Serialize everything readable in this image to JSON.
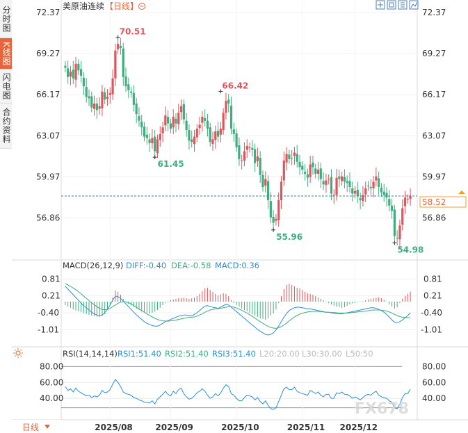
{
  "sidebar": {
    "tabs": [
      {
        "label": "分时图",
        "active": false
      },
      {
        "label": "K线图",
        "active": true
      },
      {
        "label": "闪电图",
        "active": false
      },
      {
        "label": "合约资料",
        "active": false
      }
    ]
  },
  "header": {
    "symbol": "美原油连续",
    "period_tag": "【日线】",
    "toolbar_icons": [
      "crosshair-icon",
      "fullscreen-icon",
      "settings-icon",
      "indicator-icon"
    ]
  },
  "price_panel": {
    "current_price": "58.52",
    "annotations": [
      {
        "label": "70.51",
        "value": 70.51,
        "kind": "high"
      },
      {
        "label": "66.42",
        "value": 66.42,
        "kind": "high"
      },
      {
        "label": "61.45",
        "value": 61.45,
        "kind": "low"
      },
      {
        "label": "55.96",
        "value": 55.96,
        "kind": "low"
      },
      {
        "label": "54.98",
        "value": 54.98,
        "kind": "low"
      }
    ]
  },
  "macd_panel": {
    "title": "MACD(26,12,9)",
    "dif": "DIFF:-0.40",
    "dea": "DEA:-0.58",
    "macd": "MACD:0.36"
  },
  "rsi_panel": {
    "title": "RSI(14,14,14)",
    "rsi1": "RSI1:51.40",
    "rsi2": "RSI2:51.40",
    "rsi3": "RSI3:51.40",
    "l20": "L20:20.00",
    "l30": "L30:30.00",
    "l50": "L50:50"
  },
  "footer": {
    "period_label": "日线",
    "months": [
      "2025/08",
      "2025/09",
      "2025/10",
      "2025/11",
      "2025/12"
    ]
  },
  "watermark": "FX678",
  "colors": {
    "up": "#e0555b",
    "down": "#3dae7d",
    "current_price_line": "#2f7fb8",
    "current_price_label_bg": "#f59c2a",
    "dif_line": "#2a8fd8",
    "dea_line": "#3dae7d",
    "rsi_line": "#2a8fd8",
    "accent": "#e8653b"
  },
  "chart_data": [
    {
      "type": "candlestick",
      "title": "美原油连续",
      "y_ticks": [
        72.37,
        69.27,
        66.17,
        63.07,
        59.97,
        56.86
      ],
      "ylim": [
        53.8,
        72.37
      ],
      "x_ticks": [
        "2025/08",
        "2025/09",
        "2025/10",
        "2025/11",
        "2025/12"
      ],
      "current_price": 58.52,
      "high_labels": [
        70.51,
        66.42
      ],
      "low_labels": [
        61.45,
        55.96,
        54.98
      ],
      "closes": [
        68.2,
        67.5,
        67.9,
        67.4,
        68.5,
        68.0,
        67.6,
        66.8,
        66.0,
        65.9,
        65.2,
        65.5,
        65.0,
        65.3,
        66.4,
        65.8,
        66.0,
        66.3,
        67.4,
        69.5,
        70.0,
        69.7,
        67.5,
        66.8,
        66.5,
        66.3,
        65.4,
        64.7,
        64.2,
        63.7,
        63.0,
        62.9,
        62.5,
        62.9,
        61.9,
        62.8,
        63.2,
        63.7,
        64.6,
        64.0,
        63.6,
        64.5,
        64.0,
        64.8,
        65.3,
        64.3,
        63.5,
        62.7,
        62.6,
        63.0,
        63.6,
        63.9,
        64.5,
        64.2,
        63.6,
        62.6,
        62.8,
        63.4,
        63.0,
        63.6,
        64.8,
        65.7,
        65.5,
        63.6,
        63.2,
        62.2,
        61.3,
        61.2,
        61.9,
        62.3,
        62.2,
        62.0,
        61.0,
        61.5,
        60.1,
        59.2,
        59.8,
        58.2,
        56.9,
        56.5,
        56.8,
        58.2,
        59.6,
        61.2,
        61.7,
        61.3,
        61.4,
        61.8,
        61.1,
        60.7,
        60.5,
        60.2,
        59.9,
        60.9,
        60.7,
        60.2,
        60.5,
        59.8,
        59.4,
        59.7,
        59.8,
        58.7,
        58.6,
        59.9,
        59.8,
        60.0,
        59.6,
        59.5,
        59.2,
        58.7,
        58.9,
        58.5,
        58.2,
        58.6,
        59.1,
        59.3,
        59.1,
        59.6,
        60.0,
        59.2,
        58.8,
        58.6,
        58.4,
        57.8,
        57.4,
        55.5,
        55.3,
        56.3,
        57.6,
        58.4,
        58.3,
        58.52
      ],
      "series": [
        {
          "name": "MACD",
          "ylim": [
            -1.4,
            1.0
          ],
          "y_ticks": [
            0.81,
            0.21,
            -0.4,
            -1.01
          ],
          "values": [
            -0.12,
            -0.18,
            -0.22,
            -0.28,
            -0.32,
            -0.35,
            -0.38,
            -0.41,
            -0.45,
            -0.48,
            -0.5,
            -0.52,
            -0.54,
            -0.55,
            -0.52,
            -0.45,
            -0.3,
            -0.1,
            0.15,
            0.4,
            0.35,
            0.25,
            0.1,
            0.0,
            -0.08,
            -0.14,
            -0.2,
            -0.26,
            -0.3,
            -0.35,
            -0.38,
            -0.4,
            -0.42,
            -0.4,
            -0.36,
            -0.3,
            -0.22,
            -0.12,
            -0.05,
            0.02,
            0.06,
            0.08,
            0.1,
            0.12,
            0.13,
            0.14,
            0.12,
            0.1,
            0.12,
            0.14,
            0.2,
            0.28,
            0.38,
            0.48,
            0.5,
            0.42,
            0.35,
            0.28,
            0.22,
            0.26,
            0.3,
            0.28,
            0.2,
            0.05,
            -0.05,
            -0.12,
            -0.18,
            -0.25,
            -0.3,
            -0.35,
            -0.4,
            -0.45,
            -0.5,
            -0.55,
            -0.6,
            -0.62,
            -0.65,
            -0.6,
            -0.5,
            -0.42,
            -0.28,
            -0.05,
            0.2,
            0.45,
            0.6,
            0.65,
            0.6,
            0.55,
            0.5,
            0.48,
            0.42,
            0.35,
            0.3,
            0.28,
            0.25,
            0.2,
            0.15,
            0.1,
            0.05,
            -0.02,
            -0.06,
            -0.1,
            -0.14,
            -0.18,
            -0.2,
            -0.22,
            -0.2,
            -0.15,
            -0.1,
            -0.06,
            -0.04,
            -0.02,
            -0.01,
            0.02,
            0.05,
            0.08,
            0.1,
            0.12,
            0.14,
            0.15,
            0.12,
            0.06,
            -0.02,
            -0.1,
            -0.18,
            -0.25,
            -0.2,
            -0.05,
            0.1,
            0.2,
            0.28,
            0.36
          ]
        },
        {
          "name": "DIFF",
          "values": [
            0.55,
            0.45,
            0.35,
            0.25,
            0.15,
            0.05,
            -0.05,
            -0.15,
            -0.22,
            -0.3,
            -0.38,
            -0.44,
            -0.48,
            -0.5,
            -0.48,
            -0.4,
            -0.28,
            -0.12,
            0.05,
            0.2,
            0.18,
            0.12,
            0.02,
            -0.08,
            -0.18,
            -0.28,
            -0.38,
            -0.48,
            -0.56,
            -0.64,
            -0.72,
            -0.78,
            -0.82,
            -0.86,
            -0.88,
            -0.88,
            -0.84,
            -0.78,
            -0.72,
            -0.68,
            -0.64,
            -0.6,
            -0.56,
            -0.52,
            -0.5,
            -0.48,
            -0.48,
            -0.5,
            -0.5,
            -0.46,
            -0.4,
            -0.32,
            -0.24,
            -0.16,
            -0.14,
            -0.18,
            -0.2,
            -0.22,
            -0.24,
            -0.2,
            -0.14,
            -0.1,
            -0.12,
            -0.2,
            -0.28,
            -0.36,
            -0.44,
            -0.52,
            -0.6,
            -0.68,
            -0.76,
            -0.84,
            -0.92,
            -1.0,
            -1.06,
            -1.12,
            -1.18,
            -1.2,
            -1.18,
            -1.12,
            -1.02,
            -0.88,
            -0.72,
            -0.56,
            -0.42,
            -0.32,
            -0.26,
            -0.22,
            -0.2,
            -0.2,
            -0.22,
            -0.24,
            -0.26,
            -0.26,
            -0.28,
            -0.3,
            -0.32,
            -0.34,
            -0.36,
            -0.38,
            -0.38,
            -0.4,
            -0.42,
            -0.44,
            -0.44,
            -0.44,
            -0.42,
            -0.4,
            -0.38,
            -0.36,
            -0.34,
            -0.32,
            -0.3,
            -0.28,
            -0.26,
            -0.24,
            -0.22,
            -0.22,
            -0.24,
            -0.28,
            -0.32,
            -0.38,
            -0.46,
            -0.56,
            -0.66,
            -0.74,
            -0.76,
            -0.72,
            -0.66,
            -0.58,
            -0.5,
            -0.4
          ]
        },
        {
          "name": "DEA",
          "values": [
            0.65,
            0.6,
            0.55,
            0.49,
            0.43,
            0.36,
            0.28,
            0.2,
            0.12,
            0.04,
            -0.04,
            -0.11,
            -0.18,
            -0.24,
            -0.28,
            -0.29,
            -0.28,
            -0.24,
            -0.18,
            -0.12,
            -0.06,
            -0.02,
            0.0,
            -0.01,
            -0.04,
            -0.08,
            -0.14,
            -0.2,
            -0.26,
            -0.32,
            -0.38,
            -0.44,
            -0.5,
            -0.55,
            -0.6,
            -0.64,
            -0.67,
            -0.69,
            -0.7,
            -0.7,
            -0.69,
            -0.68,
            -0.66,
            -0.64,
            -0.62,
            -0.6,
            -0.58,
            -0.57,
            -0.56,
            -0.55,
            -0.52,
            -0.48,
            -0.44,
            -0.38,
            -0.34,
            -0.3,
            -0.28,
            -0.26,
            -0.25,
            -0.24,
            -0.22,
            -0.2,
            -0.18,
            -0.18,
            -0.2,
            -0.23,
            -0.27,
            -0.31,
            -0.36,
            -0.41,
            -0.47,
            -0.53,
            -0.59,
            -0.66,
            -0.72,
            -0.78,
            -0.84,
            -0.89,
            -0.93,
            -0.95,
            -0.96,
            -0.94,
            -0.9,
            -0.84,
            -0.77,
            -0.69,
            -0.62,
            -0.55,
            -0.5,
            -0.45,
            -0.42,
            -0.39,
            -0.37,
            -0.36,
            -0.35,
            -0.35,
            -0.35,
            -0.36,
            -0.37,
            -0.38,
            -0.38,
            -0.39,
            -0.39,
            -0.4,
            -0.41,
            -0.41,
            -0.41,
            -0.41,
            -0.4,
            -0.39,
            -0.38,
            -0.37,
            -0.36,
            -0.35,
            -0.34,
            -0.33,
            -0.31,
            -0.3,
            -0.3,
            -0.3,
            -0.31,
            -0.32,
            -0.34,
            -0.37,
            -0.41,
            -0.46,
            -0.5,
            -0.54,
            -0.56,
            -0.57,
            -0.58,
            -0.58
          ]
        },
        {
          "name": "RSI",
          "ylim": [
            20,
            90
          ],
          "y_ticks": [
            80.0,
            60.0,
            40.0
          ],
          "values": [
            55,
            50,
            52,
            48,
            53,
            49,
            47,
            45,
            43,
            44,
            41,
            43,
            42,
            44,
            50,
            47,
            48,
            51,
            58,
            64,
            60,
            55,
            48,
            46,
            45,
            44,
            41,
            40,
            38,
            37,
            35,
            35,
            34,
            37,
            33,
            39,
            42,
            45,
            49,
            45,
            43,
            49,
            46,
            51,
            53,
            46,
            42,
            39,
            40,
            43,
            47,
            49,
            52,
            49,
            44,
            40,
            42,
            46,
            43,
            47,
            53,
            57,
            55,
            46,
            44,
            40,
            37,
            37,
            41,
            44,
            43,
            42,
            38,
            41,
            36,
            33,
            37,
            31,
            27,
            26,
            28,
            36,
            44,
            52,
            54,
            51,
            51,
            54,
            49,
            47,
            46,
            45,
            44,
            50,
            48,
            46,
            48,
            44,
            42,
            45,
            45,
            40,
            40,
            47,
            46,
            48,
            45,
            45,
            43,
            40,
            42,
            40,
            38,
            41,
            44,
            45,
            44,
            47,
            49,
            44,
            42,
            41,
            40,
            37,
            35,
            28,
            27,
            33,
            41,
            46,
            46,
            51.4
          ]
        }
      ]
    }
  ]
}
